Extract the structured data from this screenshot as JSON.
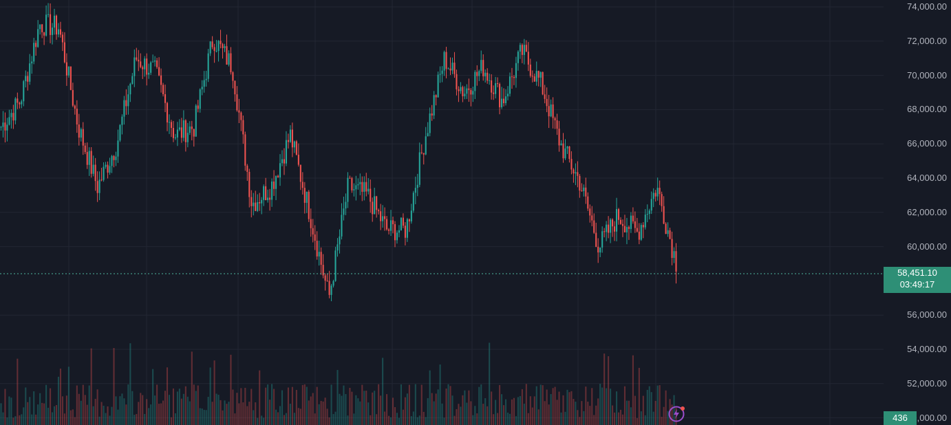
{
  "chart_data": {
    "type": "candlestick",
    "price_axis": {
      "min": 50000,
      "max": 74000,
      "ticks": [
        "74,000.00",
        "72,000.00",
        "70,000.00",
        "68,000.00",
        "66,000.00",
        "64,000.00",
        "62,000.00",
        "60,000.00",
        "56,000.00",
        "54,000.00",
        "52,000.00",
        "50,000.00"
      ]
    },
    "close_path": [
      67000,
      68500,
      73000,
      72800,
      67000,
      63500,
      66000,
      71000,
      70200,
      66500,
      67000,
      72200,
      70500,
      62500,
      63500,
      66500,
      62000,
      57000,
      63500,
      63000,
      61000,
      61000,
      66500,
      71000,
      69000,
      70500,
      68500,
      71400,
      69500,
      66000,
      63800,
      60000,
      61800,
      60800,
      63500,
      59100
    ],
    "current_price": "58,451.10",
    "countdown": "03:49:17",
    "volume_value": "436",
    "colors": {
      "up": "#26a69a",
      "down": "#ef5350",
      "background": "#161a25",
      "tag": "#2e8f76"
    }
  }
}
